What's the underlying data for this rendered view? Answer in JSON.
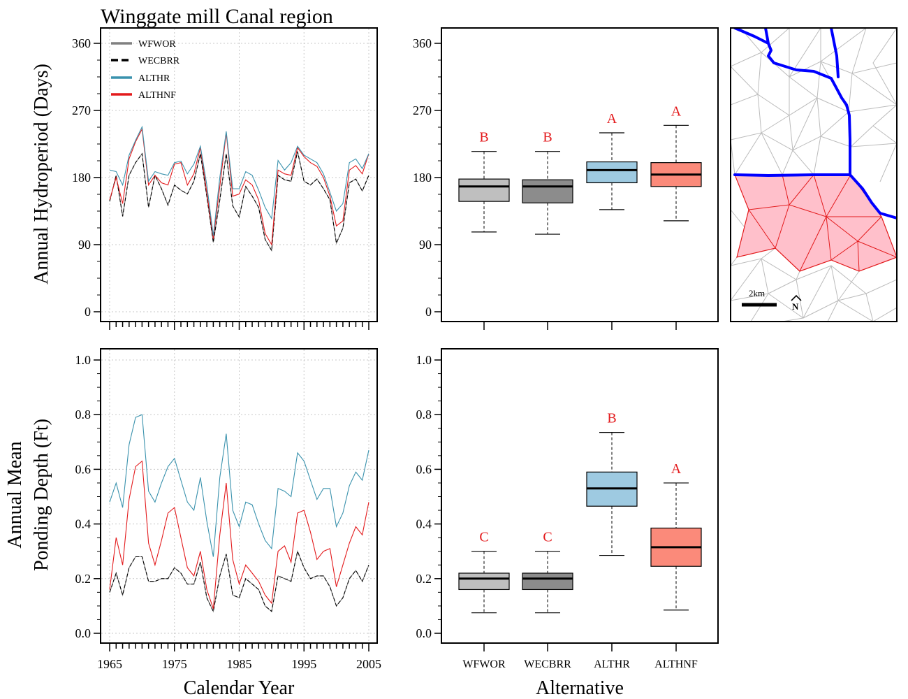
{
  "figure": {
    "title": "Winggate mill Canal region",
    "x_axis_title": "Calendar Year",
    "box_axis_title": "Alternative"
  },
  "colors": {
    "WFWOR": "#808080",
    "WECBRR": "#000000",
    "ALTHR": "#3a92ad",
    "ALTHNF": "#e31a1c",
    "box_WFWOR": "#bfbfbf",
    "box_WECBRR": "#8c8c8c",
    "box_ALTHR": "#9ecae1",
    "box_ALTHNF": "#fb8a7a",
    "map_canal": "#0000ff",
    "map_region_fill": "#ffc0cb",
    "map_region_stroke": "#e31a1c",
    "map_mesh": "#bbbbbb"
  },
  "legend": [
    {
      "name": "WFWOR",
      "style": "solid",
      "color": "#808080"
    },
    {
      "name": "WECBRR",
      "style": "dashed",
      "color": "#000000"
    },
    {
      "name": "ALTHR",
      "style": "solid",
      "color": "#3a92ad"
    },
    {
      "name": "ALTHNF",
      "style": "solid",
      "color": "#e31a1c"
    }
  ],
  "map": {
    "scale_label": "2km",
    "north_label": "N"
  },
  "chart_data": [
    {
      "type": "line",
      "ylabel": "Annual Hydroperiod (Days)",
      "xlabel": "Calendar Year",
      "xlim": [
        1965,
        2005
      ],
      "ylim": [
        0,
        360
      ],
      "yticks": [
        0,
        90,
        180,
        270,
        360
      ],
      "x": [
        1965,
        1966,
        1967,
        1968,
        1969,
        1970,
        1971,
        1972,
        1973,
        1974,
        1975,
        1976,
        1977,
        1978,
        1979,
        1980,
        1981,
        1982,
        1983,
        1984,
        1985,
        1986,
        1987,
        1988,
        1989,
        1990,
        1991,
        1992,
        1993,
        1994,
        1995,
        1996,
        1997,
        1998,
        1999,
        2000,
        2001,
        2002,
        2003,
        2004,
        2005
      ],
      "series": [
        {
          "name": "WFWOR",
          "values": [
            148,
            183,
            128,
            183,
            200,
            212,
            140,
            183,
            165,
            143,
            170,
            163,
            158,
            175,
            212,
            155,
            93,
            150,
            212,
            142,
            127,
            168,
            155,
            140,
            97,
            82,
            183,
            177,
            175,
            215,
            175,
            170,
            178,
            165,
            150,
            92,
            112,
            173,
            178,
            162,
            183
          ]
        },
        {
          "name": "WECBRR",
          "values": [
            148,
            183,
            128,
            183,
            200,
            212,
            140,
            183,
            165,
            143,
            170,
            163,
            158,
            175,
            212,
            155,
            93,
            150,
            212,
            142,
            127,
            168,
            155,
            140,
            97,
            82,
            183,
            177,
            175,
            215,
            175,
            170,
            178,
            165,
            150,
            92,
            112,
            173,
            178,
            162,
            183
          ]
        },
        {
          "name": "ALTHR",
          "values": [
            190,
            188,
            170,
            210,
            230,
            248,
            175,
            188,
            185,
            183,
            200,
            202,
            185,
            198,
            222,
            170,
            102,
            180,
            242,
            165,
            165,
            188,
            183,
            163,
            140,
            125,
            203,
            190,
            200,
            222,
            210,
            205,
            200,
            185,
            160,
            135,
            145,
            200,
            205,
            192,
            212
          ]
        },
        {
          "name": "ALTHNF",
          "values": [
            150,
            180,
            145,
            205,
            228,
            245,
            170,
            183,
            173,
            170,
            198,
            200,
            170,
            185,
            220,
            160,
            98,
            168,
            240,
            155,
            158,
            177,
            170,
            150,
            105,
            90,
            190,
            185,
            183,
            220,
            208,
            200,
            195,
            180,
            155,
            115,
            122,
            190,
            196,
            185,
            212
          ]
        }
      ]
    },
    {
      "type": "box",
      "ylabel": "Annual Hydroperiod (Days)",
      "xlabel": "Alternative",
      "ylim": [
        0,
        360
      ],
      "yticks": [
        0,
        90,
        180,
        270,
        360
      ],
      "categories": [
        "WFWOR",
        "WECBRR",
        "ALTHR",
        "ALTHNF"
      ],
      "boxes": [
        {
          "name": "WFWOR",
          "min": 107,
          "q1": 148,
          "median": 168,
          "q3": 178,
          "max": 215,
          "letter": "B"
        },
        {
          "name": "WECBRR",
          "min": 104,
          "q1": 146,
          "median": 168,
          "q3": 177,
          "max": 215,
          "letter": "B"
        },
        {
          "name": "ALTHR",
          "min": 137,
          "q1": 173,
          "median": 190,
          "q3": 201,
          "max": 240,
          "letter": "A"
        },
        {
          "name": "ALTHNF",
          "min": 122,
          "q1": 168,
          "median": 184,
          "q3": 200,
          "max": 250,
          "letter": "A"
        }
      ]
    },
    {
      "type": "line",
      "ylabel": "Annual Mean Ponding Depth (Ft)",
      "ylabel_lines": [
        "Annual Mean",
        "Ponding Depth (Ft)"
      ],
      "xlabel": "Calendar Year",
      "xlim": [
        1965,
        2005
      ],
      "ylim": [
        0,
        1
      ],
      "yticks": [
        0.0,
        0.2,
        0.4,
        0.6,
        0.8,
        1.0
      ],
      "ytick_labels": [
        "0.0",
        "0.2",
        "0.4",
        "0.6",
        "0.8",
        "1.0"
      ],
      "xticks": [
        1965,
        1975,
        1985,
        1995,
        2005
      ],
      "x": [
        1965,
        1966,
        1967,
        1968,
        1969,
        1970,
        1971,
        1972,
        1973,
        1974,
        1975,
        1976,
        1977,
        1978,
        1979,
        1980,
        1981,
        1982,
        1983,
        1984,
        1985,
        1986,
        1987,
        1988,
        1989,
        1990,
        1991,
        1992,
        1993,
        1994,
        1995,
        1996,
        1997,
        1998,
        1999,
        2000,
        2001,
        2002,
        2003,
        2004,
        2005
      ],
      "series": [
        {
          "name": "WFWOR",
          "values": [
            0.15,
            0.22,
            0.14,
            0.24,
            0.28,
            0.28,
            0.19,
            0.19,
            0.2,
            0.2,
            0.24,
            0.22,
            0.18,
            0.18,
            0.26,
            0.13,
            0.08,
            0.21,
            0.29,
            0.14,
            0.13,
            0.2,
            0.18,
            0.16,
            0.1,
            0.08,
            0.21,
            0.2,
            0.19,
            0.3,
            0.24,
            0.2,
            0.21,
            0.21,
            0.17,
            0.1,
            0.13,
            0.2,
            0.23,
            0.19,
            0.25
          ]
        },
        {
          "name": "WECBRR",
          "values": [
            0.15,
            0.22,
            0.14,
            0.24,
            0.28,
            0.28,
            0.19,
            0.19,
            0.2,
            0.2,
            0.24,
            0.22,
            0.18,
            0.18,
            0.26,
            0.13,
            0.08,
            0.21,
            0.29,
            0.14,
            0.13,
            0.2,
            0.18,
            0.16,
            0.1,
            0.08,
            0.21,
            0.2,
            0.19,
            0.3,
            0.24,
            0.2,
            0.21,
            0.21,
            0.17,
            0.1,
            0.13,
            0.2,
            0.23,
            0.19,
            0.25
          ]
        },
        {
          "name": "ALTHR",
          "values": [
            0.48,
            0.55,
            0.46,
            0.69,
            0.79,
            0.8,
            0.52,
            0.48,
            0.55,
            0.61,
            0.64,
            0.56,
            0.48,
            0.45,
            0.57,
            0.41,
            0.28,
            0.57,
            0.73,
            0.45,
            0.39,
            0.48,
            0.47,
            0.4,
            0.34,
            0.31,
            0.53,
            0.52,
            0.5,
            0.66,
            0.63,
            0.56,
            0.49,
            0.53,
            0.53,
            0.39,
            0.44,
            0.54,
            0.59,
            0.56,
            0.67
          ]
        },
        {
          "name": "ALTHNF",
          "values": [
            0.16,
            0.35,
            0.25,
            0.49,
            0.61,
            0.63,
            0.33,
            0.25,
            0.34,
            0.44,
            0.46,
            0.35,
            0.24,
            0.21,
            0.3,
            0.16,
            0.09,
            0.36,
            0.55,
            0.27,
            0.18,
            0.25,
            0.22,
            0.19,
            0.14,
            0.11,
            0.3,
            0.32,
            0.26,
            0.44,
            0.45,
            0.37,
            0.27,
            0.3,
            0.31,
            0.17,
            0.25,
            0.33,
            0.39,
            0.36,
            0.48
          ]
        }
      ]
    },
    {
      "type": "box",
      "ylabel": "Annual Mean Ponding Depth (Ft)",
      "xlabel": "Alternative",
      "ylim": [
        0,
        1
      ],
      "yticks": [
        0.0,
        0.2,
        0.4,
        0.6,
        0.8,
        1.0
      ],
      "ytick_labels": [
        "0.0",
        "0.2",
        "0.4",
        "0.6",
        "0.8",
        "1.0"
      ],
      "categories": [
        "WFWOR",
        "WECBRR",
        "ALTHR",
        "ALTHNF"
      ],
      "boxes": [
        {
          "name": "WFWOR",
          "min": 0.075,
          "q1": 0.16,
          "median": 0.2,
          "q3": 0.22,
          "max": 0.3,
          "letter": "C"
        },
        {
          "name": "WECBRR",
          "min": 0.075,
          "q1": 0.16,
          "median": 0.2,
          "q3": 0.22,
          "max": 0.3,
          "letter": "C"
        },
        {
          "name": "ALTHR",
          "min": 0.285,
          "q1": 0.465,
          "median": 0.53,
          "q3": 0.59,
          "max": 0.735,
          "letter": "B"
        },
        {
          "name": "ALTHNF",
          "min": 0.085,
          "q1": 0.245,
          "median": 0.315,
          "q3": 0.385,
          "max": 0.55,
          "letter": "A"
        }
      ]
    }
  ]
}
